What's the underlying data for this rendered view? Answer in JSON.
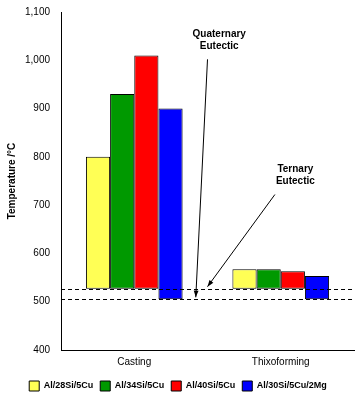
{
  "chart_data": {
    "type": "bar",
    "categories": [
      "Casting",
      "Thixoforming"
    ],
    "y_label": "Temperature /°C",
    "ylim": [
      400,
      1100
    ],
    "yticks": [
      400,
      500,
      600,
      700,
      800,
      900,
      {
        "value": 1000,
        "label": "1,000"
      },
      {
        "value": 1100,
        "label": "1,100"
      }
    ],
    "grid": false,
    "legend": "bottom",
    "series": [
      {
        "name": "Al/28Si/5Cu",
        "color": "#ffff55",
        "values": [
          [
            527,
            800
          ],
          [
            527,
            567
          ]
        ]
      },
      {
        "name": "Al/34Si/5Cu",
        "color": "#009900",
        "values": [
          [
            527,
            930
          ],
          [
            527,
            567
          ]
        ]
      },
      {
        "name": "Al/40Si/5Cu",
        "color": "#ff0000",
        "values": [
          [
            527,
            1010
          ],
          [
            527,
            563
          ]
        ]
      },
      {
        "name": "Al/30Si/5Cu/2Mg",
        "color": "#0000ff",
        "values": [
          [
            505,
            900
          ],
          [
            505,
            553
          ]
        ]
      }
    ],
    "reference_lines": [
      {
        "label": "Quaternary Eutectic",
        "value": 505
      },
      {
        "label": "Ternary Eutectic",
        "value": 527
      }
    ]
  }
}
